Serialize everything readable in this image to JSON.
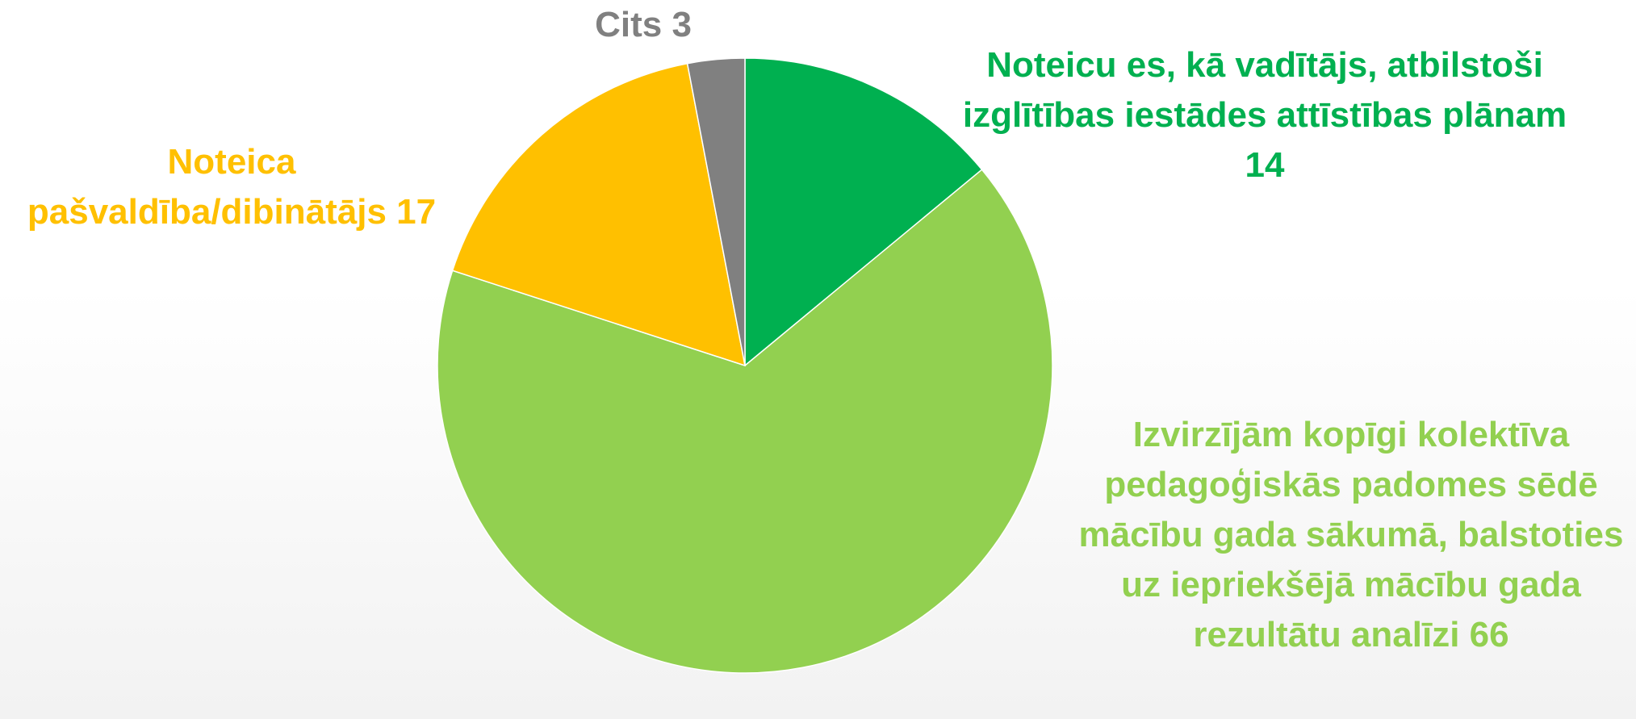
{
  "chart_data": {
    "type": "pie",
    "categories": [
      "Noteicu es, kā vadītājs, atbilstoši izglītības iestādes attīstības plānam",
      "Izvirzījām kopīgi kolektīva pedagoģiskās padomes sēdē mācību gada sākumā, balstoties uz iepriekšējā mācību gada rezultātu analīzi",
      "Noteica pašvaldība/dibinātājs",
      "Cits"
    ],
    "values": [
      14,
      66,
      17,
      3
    ],
    "colors": [
      "#00b050",
      "#92d050",
      "#ffc000",
      "#808080"
    ]
  }
}
